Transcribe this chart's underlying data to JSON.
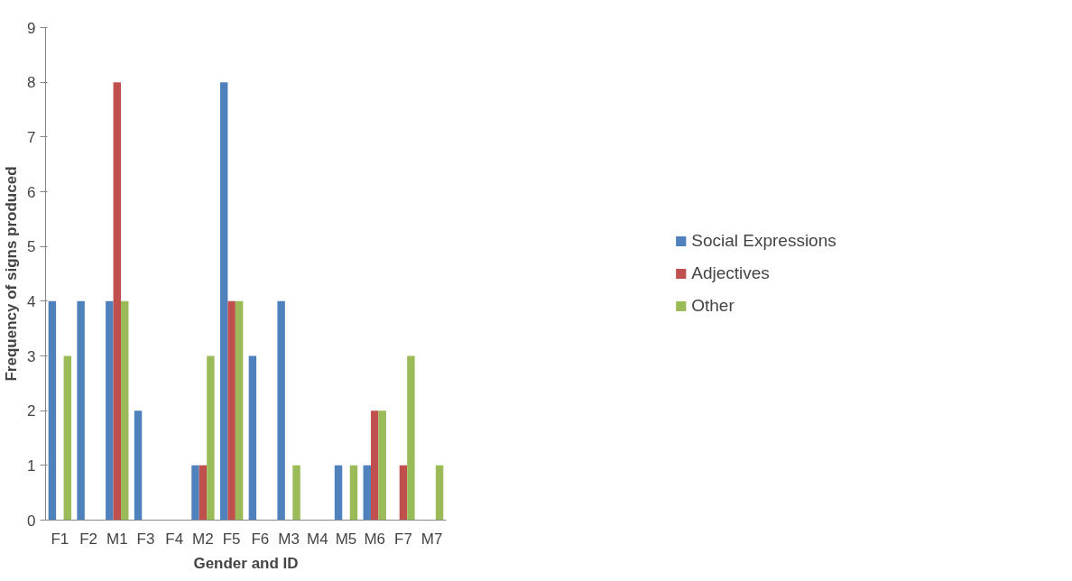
{
  "chart_data": {
    "type": "bar",
    "xlabel": "Gender and ID",
    "ylabel": "Frequency of signs produced",
    "categories": [
      "F1",
      "F2",
      "M1",
      "F3",
      "F4",
      "M2",
      "F5",
      "F6",
      "M3",
      "M4",
      "M5",
      "M6",
      "F7",
      "M7"
    ],
    "series": [
      {
        "name": "Social Expressions",
        "color": "#4f81bd",
        "values": [
          4,
          4,
          4,
          2,
          0,
          1,
          8,
          3,
          4,
          0,
          1,
          1,
          0,
          0
        ]
      },
      {
        "name": "Adjectives",
        "color": "#c0504d",
        "values": [
          0,
          0,
          8,
          0,
          0,
          1,
          4,
          0,
          0,
          0,
          0,
          2,
          1,
          0
        ]
      },
      {
        "name": "Other",
        "color": "#9bbb59",
        "values": [
          3,
          0,
          4,
          0,
          0,
          3,
          4,
          0,
          1,
          0,
          1,
          2,
          3,
          1
        ]
      }
    ],
    "ylim": [
      0,
      9
    ],
    "yticks": [
      0,
      1,
      2,
      3,
      4,
      5,
      6,
      7,
      8,
      9
    ],
    "grid": false,
    "legend": "right"
  }
}
